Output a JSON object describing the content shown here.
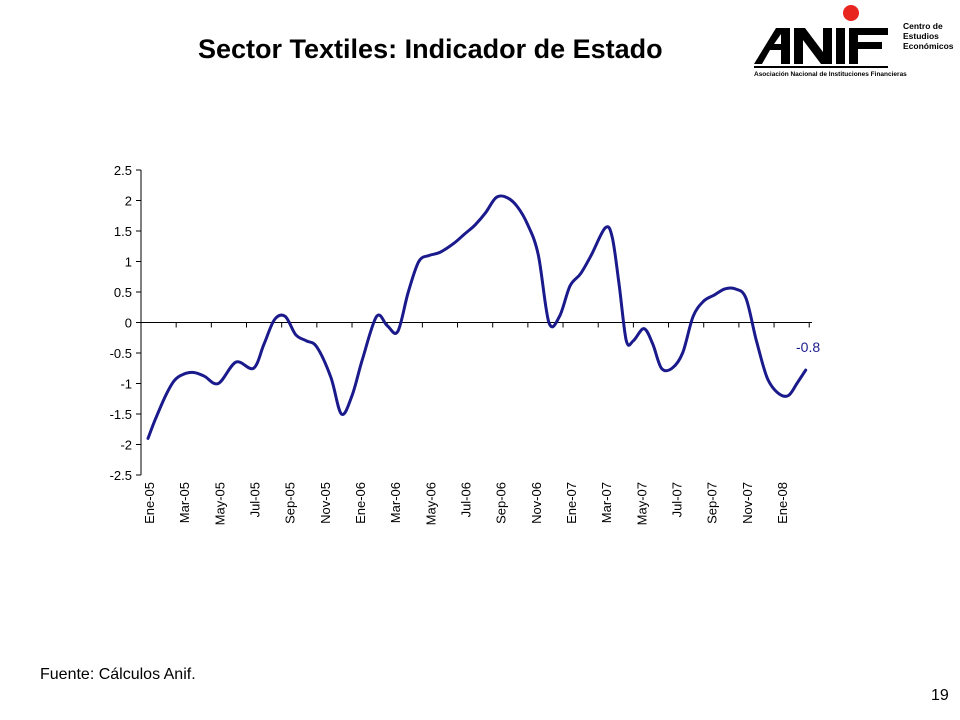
{
  "title": "Sector Textiles: Indicador de Estado",
  "logo": {
    "name": "ANIF",
    "subtitle": "Asociación Nacional de Instituciones Financieras",
    "center": [
      "Centro de",
      "Estudios",
      "Económicos"
    ],
    "accent_color": "#e8251f"
  },
  "chart_data": {
    "type": "line",
    "title": "",
    "xlabel": "",
    "ylabel": "",
    "ylim": [
      -2.5,
      2.5
    ],
    "yticks": [
      2.5,
      2,
      1.5,
      1,
      0.5,
      0,
      -0.5,
      -1,
      -1.5,
      -2,
      -2.5
    ],
    "ytick_labels": [
      "2.5",
      "2",
      "1.5",
      "1",
      "0.5",
      "0",
      "-0.5",
      "-1",
      "-1.5",
      "-2",
      "-2.5"
    ],
    "xtick_labels": [
      "Ene-05",
      "Mar-05",
      "May-05",
      "Jul-05",
      "Sep-05",
      "Nov-05",
      "Ene-06",
      "Mar-06",
      "May-06",
      "Jul-06",
      "Sep-06",
      "Nov-06",
      "Ene-07",
      "Mar-07",
      "May-07",
      "Jul-07",
      "Sep-07",
      "Nov-07",
      "Ene-08"
    ],
    "grid": false,
    "legend": "none",
    "line_color": "#1a1a8c",
    "series": [
      {
        "x": [
          0,
          0.2,
          0.5,
          0.75,
          1.0,
          1.3,
          1.6,
          2.0,
          2.5,
          3.0,
          3.3,
          3.6,
          3.9,
          4.2,
          4.5,
          4.8,
          5.2,
          5.5,
          5.8,
          6.1,
          6.5,
          6.8,
          7.1,
          7.4,
          7.7,
          8.0,
          8.3,
          8.7,
          9.0,
          9.3,
          9.6,
          9.9,
          10.2,
          10.5,
          10.8,
          11.1,
          11.4,
          11.7,
          12.0,
          12.3,
          12.6,
          13.0,
          13.2,
          13.4,
          13.6,
          13.8,
          14.1,
          14.35,
          14.6,
          14.9,
          15.2,
          15.5,
          15.8,
          16.1,
          16.4,
          16.7,
          17.0,
          17.3,
          17.6,
          17.9,
          18.2,
          18.45,
          18.7
        ],
        "y": [
          -1.9,
          -1.6,
          -1.2,
          -0.95,
          -0.85,
          -0.82,
          -0.88,
          -1.0,
          -0.65,
          -0.75,
          -0.35,
          0.05,
          0.1,
          -0.2,
          -0.3,
          -0.4,
          -0.9,
          -1.5,
          -1.2,
          -0.6,
          0.1,
          -0.05,
          -0.15,
          0.5,
          1.0,
          1.1,
          1.15,
          1.3,
          1.45,
          1.6,
          1.8,
          2.05,
          2.05,
          1.9,
          1.6,
          1.1,
          0.0,
          0.1,
          0.6,
          0.8,
          1.1,
          1.55,
          1.4,
          0.6,
          -0.3,
          -0.3,
          -0.1,
          -0.35,
          -0.75,
          -0.75,
          -0.5,
          0.1,
          0.35,
          0.45,
          0.55,
          0.55,
          0.4,
          -0.3,
          -0.9,
          -1.15,
          -1.2,
          -1.0,
          -0.78
        ]
      }
    ],
    "annotation": "-0.8"
  },
  "source": "Fuente: Cálculos Anif.",
  "page_number": "19"
}
